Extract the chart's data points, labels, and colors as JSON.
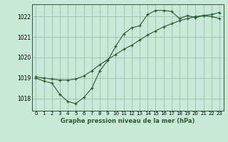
{
  "xlabel": "Graphe pression niveau de la mer (hPa)",
  "background_color": "#c8e8d8",
  "plot_bg_color": "#c8e8d8",
  "grid_color": "#9bbfaf",
  "line_color": "#2d5a2d",
  "xlim": [
    -0.5,
    23.5
  ],
  "ylim": [
    1017.4,
    1022.6
  ],
  "yticks": [
    1018,
    1019,
    1020,
    1021,
    1022
  ],
  "xticks": [
    0,
    1,
    2,
    3,
    4,
    5,
    6,
    7,
    8,
    9,
    10,
    11,
    12,
    13,
    14,
    15,
    16,
    17,
    18,
    19,
    20,
    21,
    22,
    23
  ],
  "series1_x": [
    0,
    1,
    2,
    3,
    4,
    5,
    6,
    7,
    8,
    9,
    10,
    11,
    12,
    13,
    14,
    15,
    16,
    17,
    18,
    19,
    20,
    21,
    22,
    23
  ],
  "series1_y": [
    1019.0,
    1018.85,
    1018.75,
    1018.2,
    1017.85,
    1017.75,
    1018.05,
    1018.5,
    1019.35,
    1019.85,
    1020.55,
    1021.15,
    1021.45,
    1021.55,
    1022.1,
    1022.3,
    1022.3,
    1022.25,
    1021.9,
    1022.05,
    1021.95,
    1022.05,
    1022.0,
    1021.9
  ],
  "series2_x": [
    0,
    1,
    2,
    3,
    4,
    5,
    6,
    7,
    8,
    9,
    10,
    11,
    12,
    13,
    14,
    15,
    16,
    17,
    18,
    19,
    20,
    21,
    22,
    23
  ],
  "series2_y": [
    1019.05,
    1019.0,
    1018.95,
    1018.9,
    1018.9,
    1018.95,
    1019.1,
    1019.35,
    1019.65,
    1019.9,
    1020.15,
    1020.4,
    1020.6,
    1020.85,
    1021.1,
    1021.3,
    1021.5,
    1021.65,
    1021.8,
    1021.9,
    1022.0,
    1022.05,
    1022.1,
    1022.2
  ]
}
